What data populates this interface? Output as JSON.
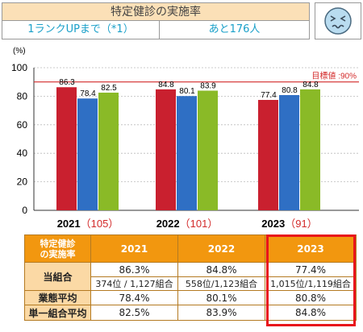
{
  "header": {
    "title": "特定健診の実施率",
    "rank_label": "1ランクUPまで（*1）",
    "remaining": "あと176人"
  },
  "face_icon": "worried-face-icon",
  "colors": {
    "red": "#c9202f",
    "blue": "#2f6fc4",
    "green": "#8aba27",
    "target": "#d32a2a",
    "table_header": "#f2970f",
    "highlight": "#e8141b"
  },
  "chart_data": {
    "type": "bar",
    "ylabel": "(%)",
    "ylim": [
      0,
      100
    ],
    "yticks": [
      0,
      20,
      40,
      60,
      80,
      100
    ],
    "grid": true,
    "target": {
      "value": 90,
      "label": "目標値 :90%"
    },
    "groups": [
      {
        "year": "2021",
        "count": "（105）",
        "values": [
          86.3,
          78.4,
          82.5
        ],
        "labels": [
          "86.3",
          "78.4",
          "82.5"
        ]
      },
      {
        "year": "2022",
        "count": "（101）",
        "values": [
          84.8,
          80.1,
          83.9
        ],
        "labels": [
          "84.8",
          "80.1",
          "83.9"
        ]
      },
      {
        "year": "2023",
        "count": "（91）",
        "values": [
          77.4,
          80.8,
          84.8
        ],
        "labels": [
          "77.4",
          "80.8",
          "84.8"
        ]
      }
    ]
  },
  "table": {
    "corner": [
      "特定健診",
      "の実施率"
    ],
    "years": [
      "2021",
      "2022",
      "2023"
    ],
    "own_label": "当組合",
    "own_rate": [
      "86.3%",
      "84.8%",
      "77.4%"
    ],
    "own_rank": [
      "374位 / 1,127組合",
      "558位/1,123組合",
      "1,015位/1,119組合"
    ],
    "industry_label": "業態平均",
    "industry": [
      "78.4%",
      "80.1%",
      "80.8%"
    ],
    "single_label": "単一組合平均",
    "single": [
      "82.5%",
      "83.9%",
      "84.8%"
    ]
  }
}
